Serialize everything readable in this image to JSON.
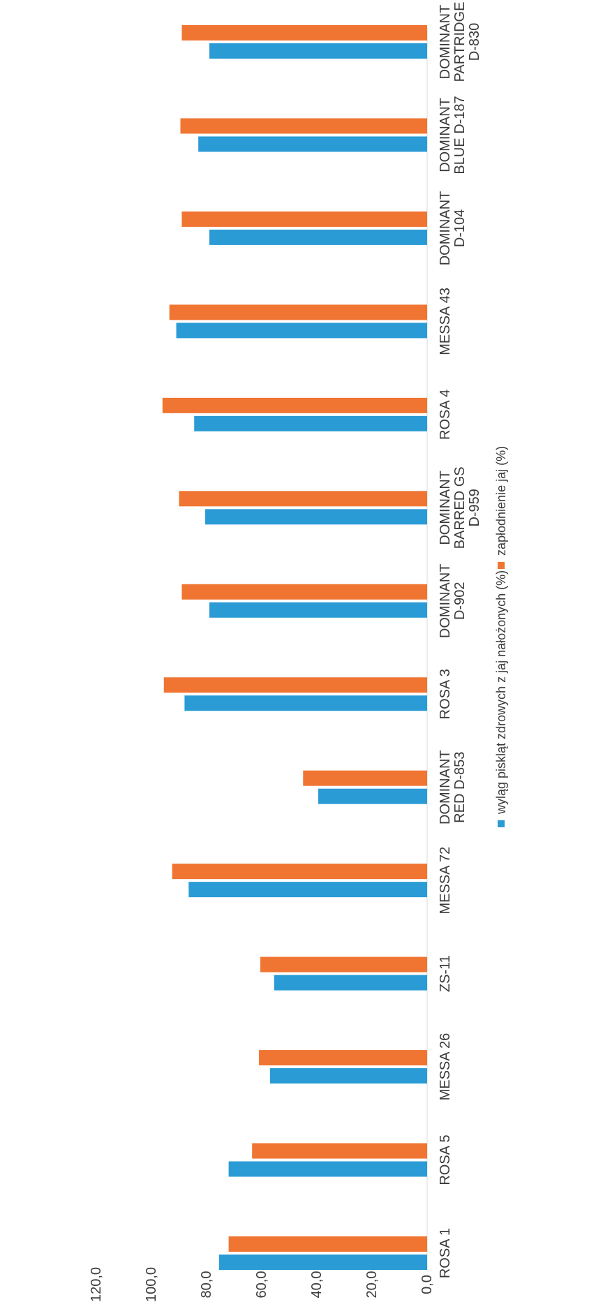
{
  "chart_data": {
    "type": "bar",
    "title": "",
    "xlabel": "",
    "ylabel": "",
    "ylim": [
      0,
      120
    ],
    "y_ticks": [
      "0,0",
      "20,0",
      "40,0",
      "60,0",
      "80,0",
      "100,0",
      "120,0"
    ],
    "categories": [
      "ROSA 1",
      "ROSA 5",
      "MESSA 26",
      "ZS-11",
      "MESSA 72",
      "DOMINANT RED D-853",
      "ROSA 3",
      "DOMINANT D-902",
      "DOMINANT BARRED GS D-959",
      "ROSA 4",
      "MESSA 43",
      "DOMINANT D-104",
      "DOMINANT BLUE D-187",
      "DOMINANT PARTRIDGE D-830"
    ],
    "category_lines": [
      [
        "ROSA 1"
      ],
      [
        "ROSA 5"
      ],
      [
        "MESSA 26"
      ],
      [
        "ZS-11"
      ],
      [
        "MESSA 72"
      ],
      [
        "DOMINANT",
        "RED D-853"
      ],
      [
        "ROSA 3"
      ],
      [
        "DOMINANT",
        "D-902"
      ],
      [
        "DOMINANT",
        "BARRED GS",
        "D-959"
      ],
      [
        "ROSA 4"
      ],
      [
        "MESSA 43"
      ],
      [
        "DOMINANT",
        "D-104"
      ],
      [
        "DOMINANT",
        "BLUE D-187"
      ],
      [
        "DOMINANT",
        "PARTRIDGE",
        "D-830"
      ]
    ],
    "series": [
      {
        "name": "wyląg piskląt zdrowych z jaj nałożonych (%)",
        "color": "#2a9bd5",
        "values": [
          75.5,
          72.0,
          57.0,
          55.5,
          86.5,
          39.5,
          88.0,
          79.0,
          80.5,
          84.5,
          91.0,
          79.0,
          83.0,
          79.0
        ]
      },
      {
        "name": "zapłodnienie jaj (%)",
        "color": "#f07532",
        "values": [
          72.0,
          63.5,
          61.0,
          60.5,
          92.5,
          45.0,
          95.5,
          89.0,
          90.0,
          96.0,
          93.5,
          89.0,
          89.5,
          89.0
        ]
      }
    ],
    "grid": false,
    "legend_position": "bottom",
    "orientation": "vertical bars, chart rotated 90 degrees counter-clockwise"
  }
}
